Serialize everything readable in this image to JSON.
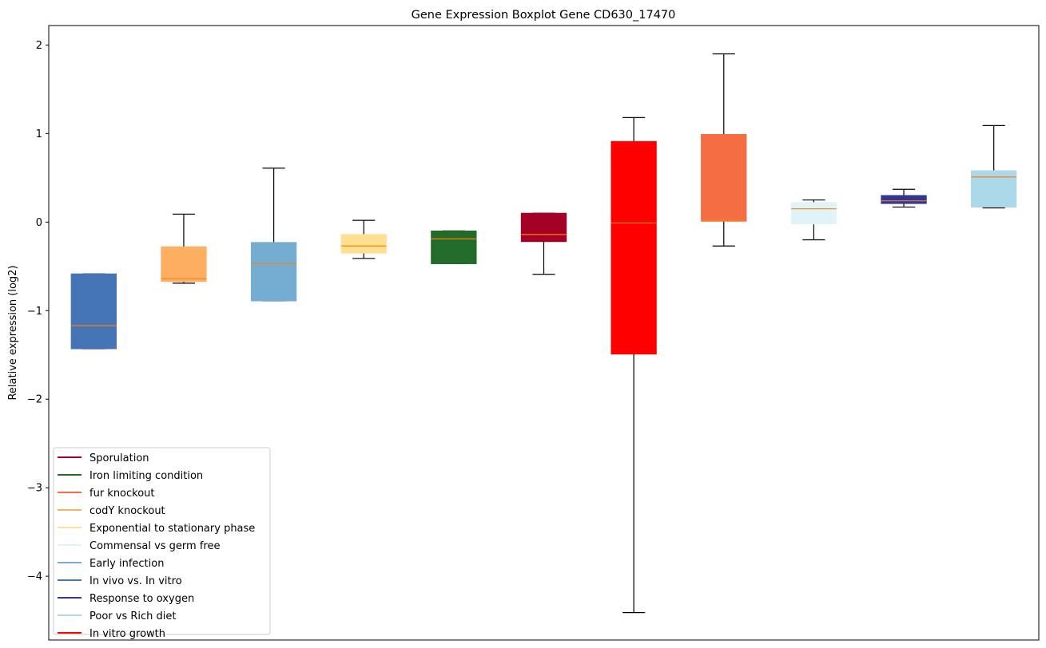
{
  "chart_data": {
    "type": "box",
    "title": "Gene Expression Boxplot Gene CD630_17470",
    "xlabel": "",
    "ylabel": "Relative expression (log2)",
    "ylim": [
      -4.72,
      2.22
    ],
    "yticks": [
      2,
      1,
      0,
      -1,
      -2,
      -3,
      -4
    ],
    "ytick_labels": [
      "2",
      "1",
      "0",
      "−1",
      "−2",
      "−3",
      "−4"
    ],
    "grid": false,
    "legend_position": "lower-left",
    "median_color": "#ff7f0e",
    "boxes": [
      {
        "name": "In vivo vs. In vitro",
        "color": "#4575b4",
        "whislo": -1.43,
        "q1": -1.43,
        "median": -1.17,
        "q3": -0.585,
        "whishi": -0.585
      },
      {
        "name": "codY knockout",
        "color": "#fdae61",
        "whislo": -0.69,
        "q1": -0.67,
        "median": -0.64,
        "q3": -0.28,
        "whishi": 0.09
      },
      {
        "name": "Early infection",
        "color": "#74add1",
        "whislo": -0.89,
        "q1": -0.89,
        "median": -0.47,
        "q3": -0.23,
        "whishi": 0.61
      },
      {
        "name": "Exponential to stationary phase",
        "color": "#fee090",
        "whislo": -0.41,
        "q1": -0.35,
        "median": -0.27,
        "q3": -0.14,
        "whishi": 0.02
      },
      {
        "name": "Iron limiting condition",
        "color": "#236b2b",
        "whislo": -0.47,
        "q1": -0.47,
        "median": -0.19,
        "q3": -0.1,
        "whishi": -0.1
      },
      {
        "name": "Sporulation",
        "color": "#a50026",
        "whislo": -0.59,
        "q1": -0.22,
        "median": -0.14,
        "q3": 0.1,
        "whishi": 0.1
      },
      {
        "name": "In vitro growth",
        "color": "#ff0000",
        "whislo": -4.41,
        "q1": -1.49,
        "median": -0.01,
        "q3": 0.91,
        "whishi": 1.18
      },
      {
        "name": "fur knockout",
        "color": "#f46d43",
        "whislo": -0.27,
        "q1": 0.01,
        "median": 0.02,
        "q3": 0.99,
        "whishi": 1.9
      },
      {
        "name": "Commensal vs germ free",
        "color": "#e0f3f8",
        "whislo": -0.2,
        "q1": -0.02,
        "median": 0.15,
        "q3": 0.22,
        "whishi": 0.25
      },
      {
        "name": "Response to oxygen",
        "color": "#313695",
        "whislo": 0.17,
        "q1": 0.21,
        "median": 0.24,
        "q3": 0.3,
        "whishi": 0.37
      },
      {
        "name": "Poor vs Rich diet",
        "color": "#abd9e9",
        "whislo": 0.16,
        "q1": 0.17,
        "median": 0.51,
        "q3": 0.58,
        "whishi": 1.09
      }
    ],
    "legend": [
      {
        "label": "Sporulation",
        "color": "#a50026"
      },
      {
        "label": "Iron limiting condition",
        "color": "#236b2b"
      },
      {
        "label": "fur knockout",
        "color": "#f46d43"
      },
      {
        "label": "codY knockout",
        "color": "#fdae61"
      },
      {
        "label": "Exponential to stationary phase",
        "color": "#fee090"
      },
      {
        "label": "Commensal vs germ free",
        "color": "#e0f3f8"
      },
      {
        "label": "Early infection",
        "color": "#74add1"
      },
      {
        "label": "In vivo vs. In vitro",
        "color": "#4575b4"
      },
      {
        "label": "Response to oxygen",
        "color": "#313695"
      },
      {
        "label": "Poor vs Rich diet",
        "color": "#abd9e9"
      },
      {
        "label": "In vitro growth",
        "color": "#ff0000"
      }
    ]
  }
}
